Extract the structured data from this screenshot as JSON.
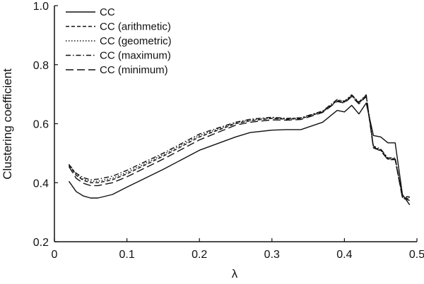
{
  "chart_data": {
    "type": "line",
    "title": "",
    "xlabel": "λ",
    "ylabel": "Clustering coefficient",
    "xlim": [
      0,
      0.5
    ],
    "ylim": [
      0.2,
      1.0
    ],
    "xticks": [
      0,
      0.1,
      0.2,
      0.3,
      0.4,
      0.5
    ],
    "xtick_labels": [
      "0",
      "0.1",
      "0.2",
      "0.3",
      "0.4",
      "0.5"
    ],
    "yticks": [
      0.2,
      0.4,
      0.6,
      0.8,
      1.0
    ],
    "ytick_labels": [
      "0.2",
      "0.4",
      "0.6",
      "0.8",
      "1.0"
    ],
    "grid": false,
    "legend_position": "top-left",
    "colors": {
      "line": "#111111",
      "axis": "#111111"
    },
    "series": [
      {
        "name": "CC",
        "dash": "solid",
        "points": [
          [
            0.02,
            0.405
          ],
          [
            0.03,
            0.37
          ],
          [
            0.04,
            0.355
          ],
          [
            0.05,
            0.348
          ],
          [
            0.06,
            0.348
          ],
          [
            0.08,
            0.36
          ],
          [
            0.1,
            0.385
          ],
          [
            0.15,
            0.445
          ],
          [
            0.2,
            0.51
          ],
          [
            0.25,
            0.555
          ],
          [
            0.27,
            0.57
          ],
          [
            0.3,
            0.578
          ],
          [
            0.32,
            0.58
          ],
          [
            0.34,
            0.58
          ],
          [
            0.37,
            0.605
          ],
          [
            0.39,
            0.645
          ],
          [
            0.4,
            0.64
          ],
          [
            0.41,
            0.662
          ],
          [
            0.42,
            0.633
          ],
          [
            0.43,
            0.67
          ],
          [
            0.44,
            0.56
          ],
          [
            0.45,
            0.555
          ],
          [
            0.46,
            0.535
          ],
          [
            0.47,
            0.535
          ],
          [
            0.48,
            0.36
          ],
          [
            0.49,
            0.325
          ]
        ]
      },
      {
        "name": "CC (arithmetic)",
        "dash": "dash-short",
        "points": [
          [
            0.02,
            0.46
          ],
          [
            0.03,
            0.425
          ],
          [
            0.04,
            0.408
          ],
          [
            0.05,
            0.4
          ],
          [
            0.06,
            0.4
          ],
          [
            0.08,
            0.41
          ],
          [
            0.1,
            0.43
          ],
          [
            0.15,
            0.49
          ],
          [
            0.2,
            0.555
          ],
          [
            0.25,
            0.6
          ],
          [
            0.27,
            0.61
          ],
          [
            0.3,
            0.618
          ],
          [
            0.32,
            0.615
          ],
          [
            0.34,
            0.617
          ],
          [
            0.37,
            0.64
          ],
          [
            0.39,
            0.678
          ],
          [
            0.4,
            0.673
          ],
          [
            0.41,
            0.695
          ],
          [
            0.42,
            0.67
          ],
          [
            0.43,
            0.695
          ],
          [
            0.44,
            0.52
          ],
          [
            0.45,
            0.51
          ],
          [
            0.46,
            0.48
          ],
          [
            0.47,
            0.48
          ],
          [
            0.48,
            0.35
          ],
          [
            0.49,
            0.345
          ]
        ]
      },
      {
        "name": "CC (geometric)",
        "dash": "dotted",
        "points": [
          [
            0.02,
            0.462
          ],
          [
            0.03,
            0.428
          ],
          [
            0.04,
            0.412
          ],
          [
            0.05,
            0.405
          ],
          [
            0.06,
            0.405
          ],
          [
            0.08,
            0.415
          ],
          [
            0.1,
            0.435
          ],
          [
            0.15,
            0.495
          ],
          [
            0.2,
            0.56
          ],
          [
            0.25,
            0.603
          ],
          [
            0.27,
            0.612
          ],
          [
            0.3,
            0.62
          ],
          [
            0.32,
            0.617
          ],
          [
            0.34,
            0.619
          ],
          [
            0.37,
            0.642
          ],
          [
            0.39,
            0.68
          ],
          [
            0.4,
            0.675
          ],
          [
            0.41,
            0.697
          ],
          [
            0.42,
            0.672
          ],
          [
            0.43,
            0.697
          ],
          [
            0.44,
            0.522
          ],
          [
            0.45,
            0.512
          ],
          [
            0.46,
            0.482
          ],
          [
            0.47,
            0.482
          ],
          [
            0.48,
            0.352
          ],
          [
            0.49,
            0.35
          ]
        ]
      },
      {
        "name": "CC (maximum)",
        "dash": "dash-dot",
        "points": [
          [
            0.02,
            0.462
          ],
          [
            0.03,
            0.432
          ],
          [
            0.04,
            0.417
          ],
          [
            0.05,
            0.41
          ],
          [
            0.06,
            0.412
          ],
          [
            0.08,
            0.422
          ],
          [
            0.1,
            0.442
          ],
          [
            0.15,
            0.5
          ],
          [
            0.2,
            0.565
          ],
          [
            0.25,
            0.605
          ],
          [
            0.27,
            0.615
          ],
          [
            0.3,
            0.622
          ],
          [
            0.32,
            0.618
          ],
          [
            0.34,
            0.62
          ],
          [
            0.37,
            0.643
          ],
          [
            0.39,
            0.682
          ],
          [
            0.4,
            0.676
          ],
          [
            0.41,
            0.698
          ],
          [
            0.42,
            0.673
          ],
          [
            0.43,
            0.698
          ],
          [
            0.44,
            0.524
          ],
          [
            0.45,
            0.514
          ],
          [
            0.46,
            0.484
          ],
          [
            0.47,
            0.484
          ],
          [
            0.48,
            0.354
          ],
          [
            0.49,
            0.352
          ]
        ]
      },
      {
        "name": "CC (minimum)",
        "dash": "dash-long",
        "points": [
          [
            0.02,
            0.455
          ],
          [
            0.03,
            0.415
          ],
          [
            0.04,
            0.398
          ],
          [
            0.05,
            0.39
          ],
          [
            0.06,
            0.39
          ],
          [
            0.08,
            0.4
          ],
          [
            0.1,
            0.42
          ],
          [
            0.15,
            0.48
          ],
          [
            0.2,
            0.545
          ],
          [
            0.25,
            0.595
          ],
          [
            0.27,
            0.605
          ],
          [
            0.3,
            0.613
          ],
          [
            0.32,
            0.612
          ],
          [
            0.34,
            0.614
          ],
          [
            0.37,
            0.638
          ],
          [
            0.39,
            0.675
          ],
          [
            0.4,
            0.67
          ],
          [
            0.41,
            0.692
          ],
          [
            0.42,
            0.667
          ],
          [
            0.43,
            0.692
          ],
          [
            0.44,
            0.518
          ],
          [
            0.45,
            0.508
          ],
          [
            0.46,
            0.478
          ],
          [
            0.47,
            0.478
          ],
          [
            0.48,
            0.348
          ],
          [
            0.49,
            0.34
          ]
        ]
      }
    ]
  }
}
